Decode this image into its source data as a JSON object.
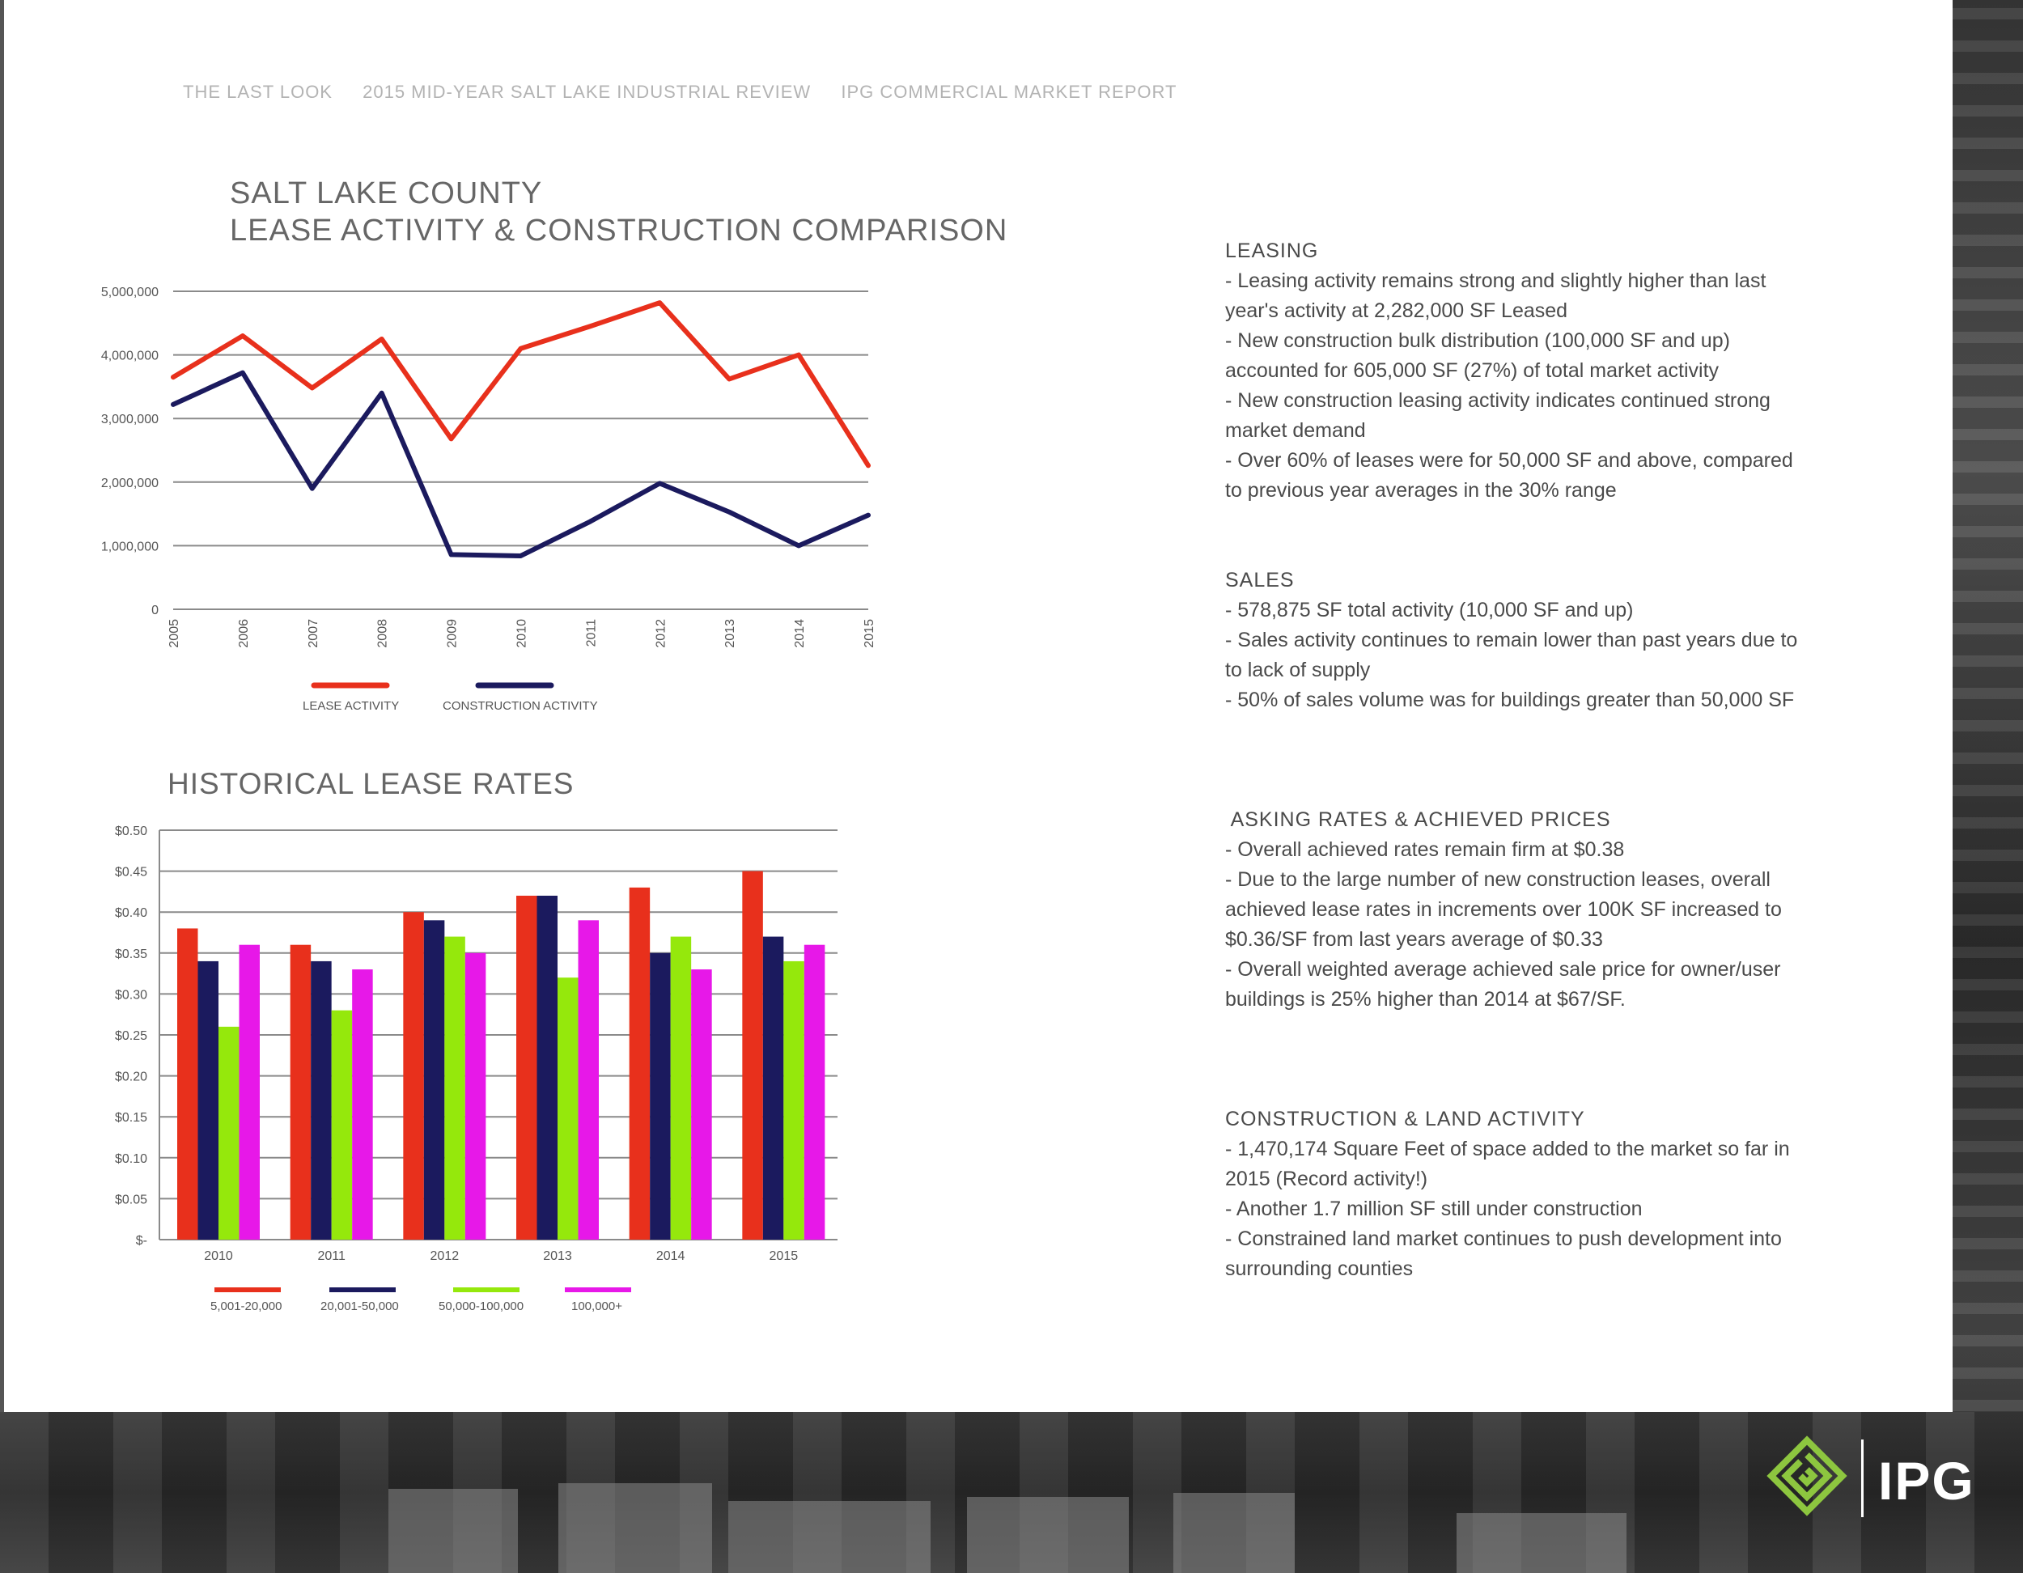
{
  "header": {
    "items": [
      "THE LAST LOOK",
      "2015 MID-YEAR SALT LAKE INDUSTRIAL REVIEW",
      "IPG COMMERCIAL MARKET REPORT"
    ]
  },
  "chart_data": [
    {
      "type": "line",
      "title_line1": "SALT LAKE COUNTY",
      "title_line2": "LEASE ACTIVITY & CONSTRUCTION COMPARISON",
      "x": [
        "2005",
        "2006",
        "2007",
        "2008",
        "2009",
        "2010",
        "2011",
        "2012",
        "2013",
        "2014",
        "2015"
      ],
      "series": [
        {
          "name": "LEASE ACTIVITY",
          "color": "#e8301c",
          "values": [
            3650000,
            4300000,
            3480000,
            4250000,
            2680000,
            4100000,
            4450000,
            4820000,
            3620000,
            4000000,
            2260000
          ]
        },
        {
          "name": "CONSTRUCTION ACTIVITY",
          "color": "#1b1a5e",
          "values": [
            3220000,
            3720000,
            1900000,
            3400000,
            860000,
            840000,
            1380000,
            1980000,
            1530000,
            1000000,
            1480000
          ]
        }
      ],
      "yticks": [
        "5,000,000",
        "4,000,000",
        "3,000,000",
        "2,000,000",
        "1,000,000",
        "0"
      ],
      "ylim": [
        0,
        5000000
      ],
      "grid": true,
      "legend": "bottom"
    },
    {
      "type": "bar",
      "title": "HISTORICAL LEASE RATES",
      "categories": [
        "2010",
        "2011",
        "2012",
        "2013",
        "2014",
        "2015"
      ],
      "series": [
        {
          "name": "5,001-20,000",
          "color": "#e8301c",
          "values": [
            0.38,
            0.36,
            0.4,
            0.42,
            0.43,
            0.45
          ]
        },
        {
          "name": "20,001-50,000",
          "color": "#1b1a5e",
          "values": [
            0.34,
            0.34,
            0.39,
            0.42,
            0.35,
            0.37
          ]
        },
        {
          "name": "50,000-100,000",
          "color": "#95e80c",
          "values": [
            0.26,
            0.28,
            0.37,
            0.32,
            0.37,
            0.34
          ]
        },
        {
          "name": "100,000+",
          "color": "#e718e8",
          "values": [
            0.36,
            0.33,
            0.35,
            0.39,
            0.33,
            0.36
          ]
        }
      ],
      "yticks": [
        "$0.50",
        "$0.45",
        "$0.40",
        "$0.35",
        "$0.30",
        "$0.25",
        "$0.20",
        "$0.15",
        "$0.10",
        "$0.05",
        "$-"
      ],
      "ylim": [
        0,
        0.5
      ],
      "grid": true,
      "legend": "bottom"
    }
  ],
  "sections": [
    {
      "heading": "LEASING",
      "lines": [
        "-  Leasing activity remains strong and slightly higher than last",
        "year's activity at 2,282,000 SF Leased",
        "-  New construction bulk distribution (100,000 SF and up)",
        "accounted for 605,000 SF (27%) of total market activity",
        "-  New construction leasing activity indicates continued strong",
        "market demand",
        "-  Over 60% of leases were for 50,000 SF and above, compared",
        "to previous year averages in the 30% range"
      ]
    },
    {
      "heading": "SALES",
      "lines": [
        "-  578,875 SF total activity (10,000 SF and up)",
        "-  Sales activity continues to remain lower than past years due to",
        "to lack of supply",
        "-  50% of sales volume was for buildings greater than 50,000 SF"
      ]
    },
    {
      "heading": " ASKING RATES & ACHIEVED PRICES",
      "lines": [
        "-  Overall achieved rates remain firm at $0.38",
        "-  Due to the large number of new construction leases, overall",
        "achieved lease rates in increments over 100K SF increased to",
        "$0.36/SF from last years average of $0.33",
        "-  Overall weighted average achieved sale price for owner/user",
        "buildings is 25% higher than 2014 at  $67/SF."
      ]
    },
    {
      "heading": "CONSTRUCTION & LAND ACTIVITY",
      "lines": [
        "-  1,470,174 Square Feet of space added to the market so far in",
        "2015 (Record activity!)",
        "- Another 1.7 million SF still under construction",
        "-  Constrained land market continues to push development into",
        "surrounding counties"
      ]
    }
  ],
  "logo": {
    "text": "IPG",
    "accent": "#8dc63f"
  }
}
